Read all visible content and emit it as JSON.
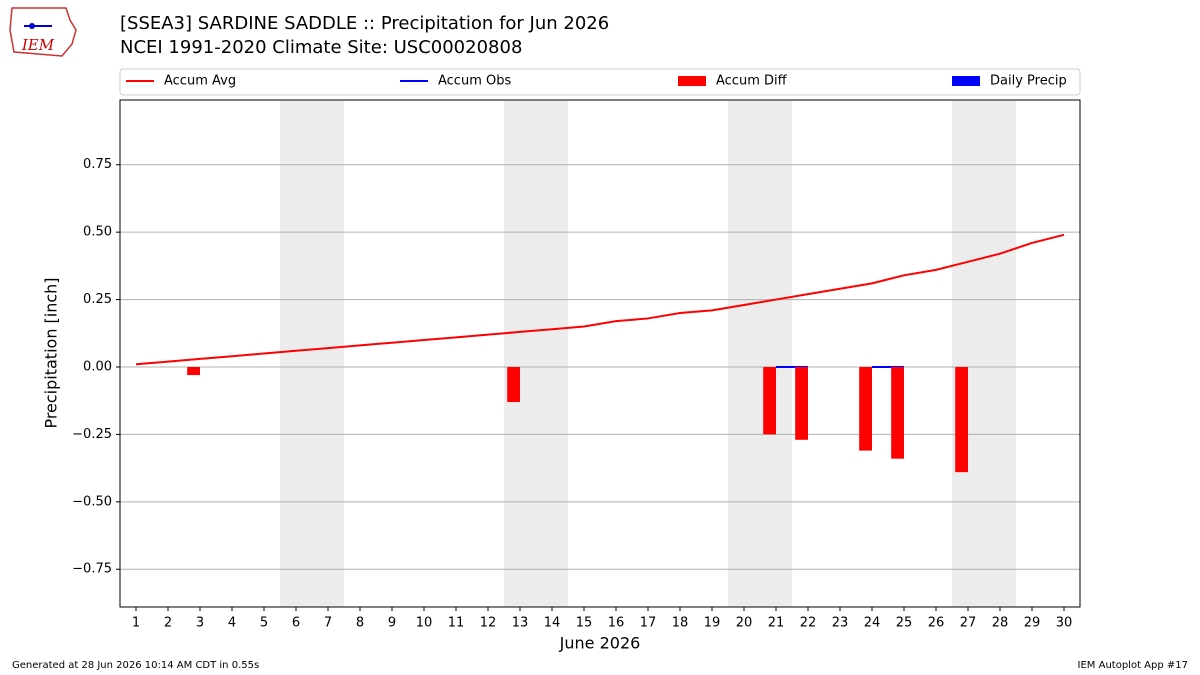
{
  "chart_data": {
    "type": "line",
    "logo_text": "IEM",
    "title": "[SSEA3] SARDINE SADDLE :: Precipitation for Jun 2026",
    "subtitle": "NCEI 1991-2020 Climate Site: USC00020808",
    "x_label": "June 2026",
    "y_label": "Precipitation [inch]",
    "footer_left": "Generated at 28 Jun 2026 10:14 AM CDT in 0.55s",
    "footer_right": "IEM Autoplot App #17",
    "x": [
      1,
      2,
      3,
      4,
      5,
      6,
      7,
      8,
      9,
      10,
      11,
      12,
      13,
      14,
      15,
      16,
      17,
      18,
      19,
      20,
      21,
      22,
      23,
      24,
      25,
      26,
      27,
      28,
      29,
      30
    ],
    "xlim": [
      0.5,
      30.5
    ],
    "xticks": [
      1,
      2,
      3,
      4,
      5,
      6,
      7,
      8,
      9,
      10,
      11,
      12,
      13,
      14,
      15,
      16,
      17,
      18,
      19,
      20,
      21,
      22,
      23,
      24,
      25,
      26,
      27,
      28,
      29,
      30
    ],
    "ylim": [
      -0.89,
      0.99
    ],
    "yticks": [
      {
        "value": -0.75,
        "label": "−0.75"
      },
      {
        "value": -0.5,
        "label": "−0.50"
      },
      {
        "value": -0.25,
        "label": "−0.25"
      },
      {
        "value": 0,
        "label": "0.00"
      },
      {
        "value": 0.25,
        "label": "0.25"
      },
      {
        "value": 0.5,
        "label": "0.50"
      },
      {
        "value": 0.75,
        "label": "0.75"
      }
    ],
    "grid": true,
    "weekend_spans": [
      [
        5.5,
        7.5
      ],
      [
        12.5,
        14.5
      ],
      [
        19.5,
        21.5
      ],
      [
        26.5,
        28.5
      ]
    ],
    "series": [
      {
        "name": "Accum Avg",
        "type": "line",
        "color": "#ff0000",
        "values": [
          0.01,
          0.02,
          0.03,
          0.04,
          0.05,
          0.06,
          0.07,
          0.08,
          0.09,
          0.1,
          0.11,
          0.12,
          0.13,
          0.14,
          0.15,
          0.17,
          0.18,
          0.2,
          0.21,
          0.23,
          0.25,
          0.27,
          0.29,
          0.31,
          0.34,
          0.36,
          0.39,
          0.42,
          0.46,
          0.49
        ]
      },
      {
        "name": "Accum Obs",
        "type": "line",
        "color": "#0000ff",
        "values": [
          null,
          null,
          0,
          null,
          null,
          null,
          null,
          null,
          null,
          null,
          null,
          null,
          0,
          null,
          null,
          null,
          null,
          null,
          null,
          null,
          0,
          0,
          null,
          0,
          0,
          null,
          0,
          null,
          null,
          null
        ]
      },
      {
        "name": "Accum Diff",
        "type": "bar",
        "color": "#ff0000",
        "values": [
          null,
          null,
          -0.03,
          null,
          null,
          null,
          null,
          null,
          null,
          null,
          null,
          null,
          -0.13,
          null,
          null,
          null,
          null,
          null,
          null,
          null,
          -0.25,
          -0.27,
          null,
          -0.31,
          -0.34,
          null,
          -0.39,
          null,
          null,
          null
        ]
      },
      {
        "name": "Daily Precip",
        "type": "bar",
        "color": "#0000ff"
      }
    ]
  }
}
